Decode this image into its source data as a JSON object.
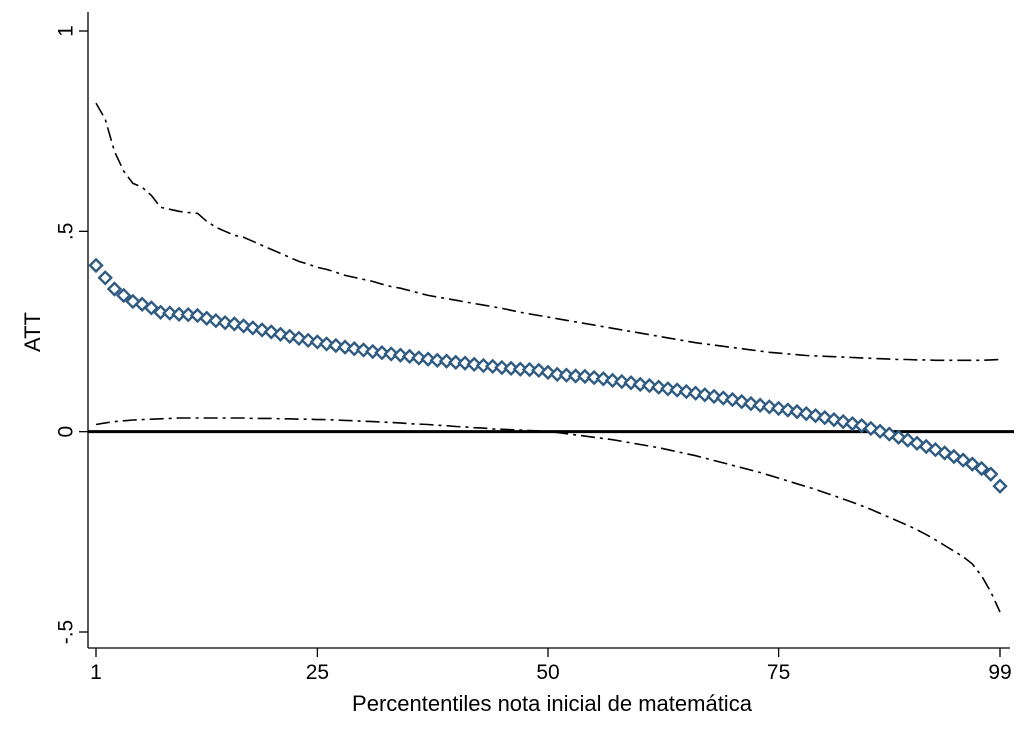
{
  "chart_data": {
    "type": "scatter",
    "title": "",
    "xlabel": "Percententiles nota inicial de matemática",
    "ylabel": "ATT",
    "xlim": [
      1,
      99
    ],
    "ylim": [
      -0.5,
      1
    ],
    "xticks": [
      1,
      25,
      50,
      75,
      99
    ],
    "xtick_labels": [
      "1",
      "25",
      "50",
      "75",
      "99"
    ],
    "yticks": [
      -0.5,
      0,
      0.5,
      1
    ],
    "ytick_labels": [
      "-.5",
      "0",
      ".5",
      "1"
    ],
    "reference_line": {
      "y": 0,
      "label": ""
    },
    "x": [
      1,
      2,
      3,
      4,
      5,
      6,
      7,
      8,
      9,
      10,
      11,
      12,
      13,
      14,
      15,
      16,
      17,
      18,
      19,
      20,
      21,
      22,
      23,
      24,
      25,
      26,
      27,
      28,
      29,
      30,
      31,
      32,
      33,
      34,
      35,
      36,
      37,
      38,
      39,
      40,
      41,
      42,
      43,
      44,
      45,
      46,
      47,
      48,
      49,
      50,
      51,
      52,
      53,
      54,
      55,
      56,
      57,
      58,
      59,
      60,
      61,
      62,
      63,
      64,
      65,
      66,
      67,
      68,
      69,
      70,
      71,
      72,
      73,
      74,
      75,
      76,
      77,
      78,
      79,
      80,
      81,
      82,
      83,
      84,
      85,
      86,
      87,
      88,
      89,
      90,
      91,
      92,
      93,
      94,
      95,
      96,
      97,
      98,
      99
    ],
    "series": [
      {
        "name": "ATT",
        "style": "diamond-markers",
        "color": "#2f5b82",
        "values": [
          0.415,
          0.384,
          0.356,
          0.34,
          0.325,
          0.318,
          0.309,
          0.298,
          0.296,
          0.293,
          0.292,
          0.29,
          0.283,
          0.277,
          0.272,
          0.269,
          0.264,
          0.259,
          0.254,
          0.249,
          0.243,
          0.238,
          0.233,
          0.228,
          0.224,
          0.219,
          0.215,
          0.211,
          0.207,
          0.204,
          0.2,
          0.197,
          0.194,
          0.191,
          0.188,
          0.184,
          0.181,
          0.178,
          0.176,
          0.173,
          0.171,
          0.168,
          0.165,
          0.163,
          0.16,
          0.158,
          0.156,
          0.155,
          0.153,
          0.148,
          0.143,
          0.141,
          0.139,
          0.138,
          0.135,
          0.132,
          0.128,
          0.125,
          0.122,
          0.118,
          0.115,
          0.111,
          0.107,
          0.104,
          0.1,
          0.096,
          0.092,
          0.088,
          0.084,
          0.08,
          0.075,
          0.07,
          0.066,
          0.062,
          0.058,
          0.054,
          0.05,
          0.045,
          0.04,
          0.035,
          0.03,
          0.025,
          0.02,
          0.015,
          0.008,
          0.001,
          -0.006,
          -0.014,
          -0.021,
          -0.029,
          -0.037,
          -0.045,
          -0.053,
          -0.062,
          -0.071,
          -0.081,
          -0.092,
          -0.106,
          -0.136
        ]
      },
      {
        "name": "Upper bound",
        "style": "dash-dot",
        "color": "#000000",
        "values": [
          0.82,
          0.78,
          0.7,
          0.65,
          0.62,
          0.61,
          0.59,
          0.56,
          0.555,
          0.55,
          0.547,
          0.545,
          0.525,
          0.51,
          0.5,
          0.49,
          0.485,
          0.475,
          0.465,
          0.455,
          0.445,
          0.435,
          0.425,
          0.418,
          0.41,
          0.405,
          0.398,
          0.39,
          0.385,
          0.38,
          0.375,
          0.368,
          0.362,
          0.358,
          0.352,
          0.346,
          0.34,
          0.336,
          0.332,
          0.328,
          0.324,
          0.32,
          0.316,
          0.312,
          0.308,
          0.303,
          0.298,
          0.294,
          0.29,
          0.286,
          0.282,
          0.278,
          0.274,
          0.27,
          0.266,
          0.262,
          0.258,
          0.254,
          0.25,
          0.246,
          0.242,
          0.238,
          0.234,
          0.23,
          0.226,
          0.222,
          0.219,
          0.216,
          0.213,
          0.21,
          0.207,
          0.204,
          0.201,
          0.198,
          0.196,
          0.194,
          0.192,
          0.19,
          0.189,
          0.188,
          0.187,
          0.186,
          0.185,
          0.184,
          0.183,
          0.182,
          0.181,
          0.18,
          0.18,
          0.179,
          0.179,
          0.178,
          0.178,
          0.178,
          0.178,
          0.178,
          0.178,
          0.179,
          0.18
        ]
      },
      {
        "name": "Lower bound",
        "style": "dash-dot",
        "color": "#000000",
        "values": [
          0.018,
          0.022,
          0.025,
          0.027,
          0.029,
          0.03,
          0.031,
          0.032,
          0.033,
          0.034,
          0.034,
          0.034,
          0.034,
          0.034,
          0.034,
          0.034,
          0.034,
          0.033,
          0.033,
          0.033,
          0.032,
          0.032,
          0.031,
          0.031,
          0.03,
          0.03,
          0.029,
          0.028,
          0.027,
          0.026,
          0.025,
          0.024,
          0.023,
          0.022,
          0.02,
          0.019,
          0.018,
          0.016,
          0.015,
          0.013,
          0.012,
          0.01,
          0.009,
          0.007,
          0.006,
          0.005,
          0.004,
          0.003,
          0.002,
          0.0,
          -0.002,
          -0.005,
          -0.008,
          -0.011,
          -0.014,
          -0.017,
          -0.02,
          -0.024,
          -0.028,
          -0.032,
          -0.036,
          -0.04,
          -0.045,
          -0.05,
          -0.055,
          -0.06,
          -0.066,
          -0.072,
          -0.078,
          -0.084,
          -0.09,
          -0.096,
          -0.102,
          -0.109,
          -0.116,
          -0.123,
          -0.13,
          -0.137,
          -0.144,
          -0.152,
          -0.16,
          -0.168,
          -0.176,
          -0.185,
          -0.194,
          -0.204,
          -0.214,
          -0.224,
          -0.234,
          -0.245,
          -0.257,
          -0.27,
          -0.284,
          -0.298,
          -0.312,
          -0.33,
          -0.36,
          -0.4,
          -0.45
        ]
      }
    ]
  }
}
